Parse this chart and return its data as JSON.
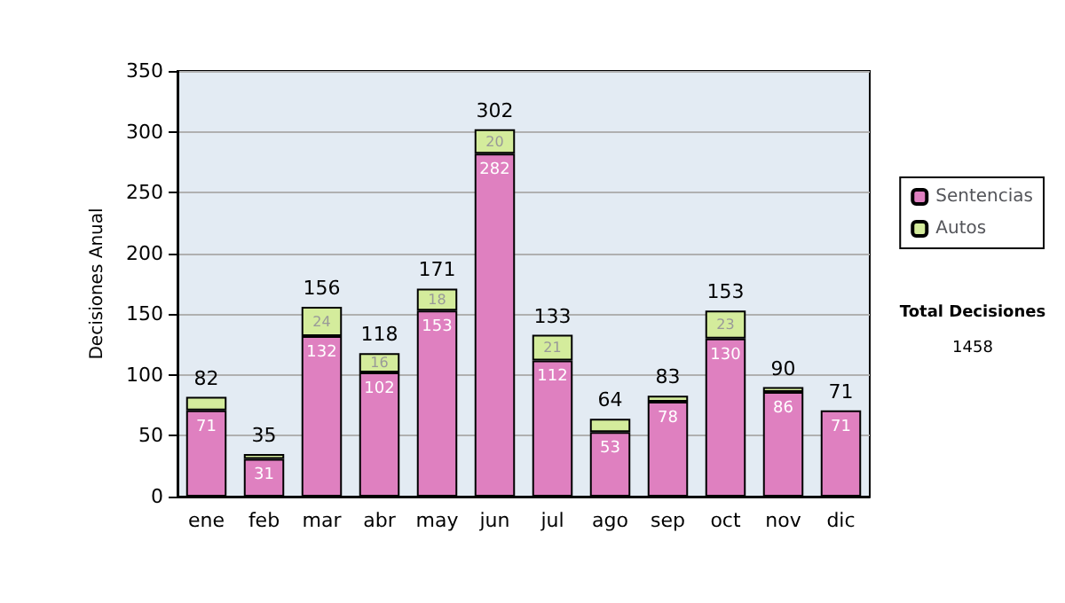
{
  "chart_data": {
    "type": "bar",
    "stacked": true,
    "ylabel": "Decisiones Anual",
    "categories": [
      "ene",
      "feb",
      "mar",
      "abr",
      "may",
      "jun",
      "jul",
      "ago",
      "sep",
      "oct",
      "nov",
      "dic"
    ],
    "series": [
      {
        "name": "Sentencias",
        "color": "#df80c0",
        "values": [
          71,
          31,
          132,
          102,
          153,
          282,
          112,
          53,
          78,
          130,
          86,
          71
        ],
        "value_labels": [
          "71",
          "31",
          "132",
          "102",
          "153",
          "282",
          "112",
          "53",
          "78",
          "130",
          "86",
          "71"
        ]
      },
      {
        "name": "Autos",
        "color": "#d4ec9c",
        "values": [
          11,
          4,
          24,
          16,
          18,
          20,
          21,
          11,
          5,
          23,
          4,
          0
        ],
        "value_labels": [
          null,
          null,
          "24",
          "16",
          "18",
          "20",
          "21",
          null,
          null,
          "23",
          null,
          null
        ]
      }
    ],
    "totals": [
      "82",
      "35",
      "156",
      "118",
      "171",
      "302",
      "133",
      "64",
      "83",
      "153",
      "90",
      "71"
    ],
    "ylim": [
      0,
      350
    ],
    "yticks": [
      0,
      50,
      100,
      150,
      200,
      250,
      300,
      350
    ],
    "grid": "y",
    "legend": "right",
    "annotations": [
      "Total Decisiones",
      "1458"
    ]
  }
}
